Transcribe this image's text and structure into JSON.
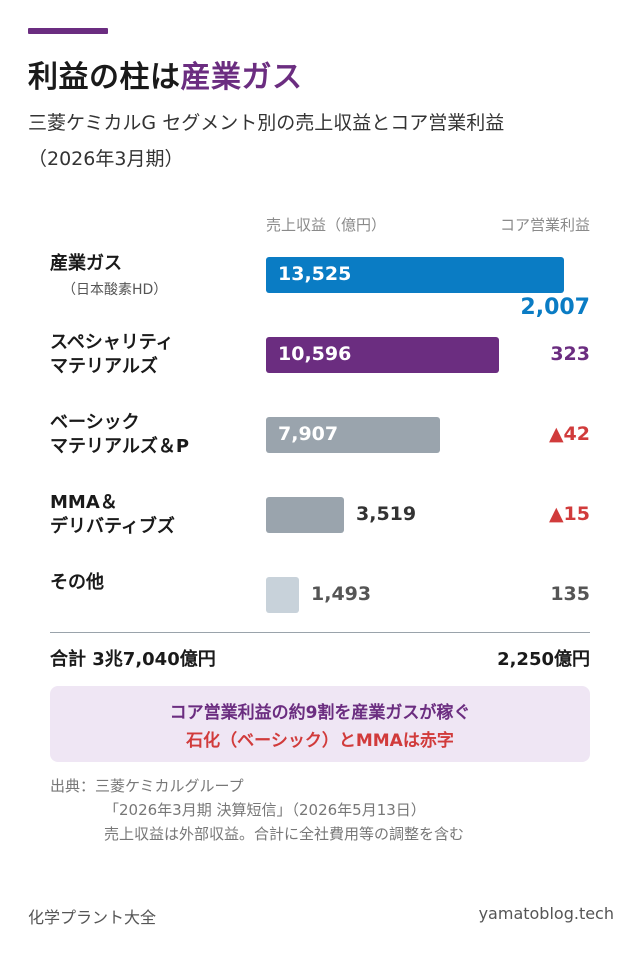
{
  "header": {
    "title_prefix": "利益の柱は",
    "title_highlight": "産業ガス",
    "subtitle_line1": "三菱ケミカルG セグメント別の売上収益とコア営業利益",
    "subtitle_line2": "（2026年3月期）"
  },
  "columns": {
    "revenue": "売上収益（億円）",
    "profit": "コア営業利益"
  },
  "colors": {
    "accent": "#6b2d80",
    "industrial_gas": "#0a7cc4",
    "specialty": "#6b2d80",
    "basic": "#9aa4ad",
    "mma": "#9aa4ad",
    "other": "#c8d2da",
    "loss": "#d13b3b"
  },
  "chart_data": {
    "type": "bar",
    "categories": [
      "産業ガス",
      "スペシャリティ マテリアルズ",
      "ベーシック マテリアルズ＆P",
      "MMA＆ デリバティブズ",
      "その他"
    ],
    "series": [
      {
        "name": "売上収益（億円）",
        "values": [
          13525,
          10596,
          7907,
          3519,
          1493
        ]
      },
      {
        "name": "コア営業利益",
        "values": [
          2007,
          323,
          -42,
          -15,
          135
        ]
      }
    ],
    "xlim": [
      0,
      13525
    ]
  },
  "rows": [
    {
      "label1": "産業ガス",
      "label2": "",
      "sub": "（日本酸素HD）",
      "revenue": "13,525",
      "profit": "2,007"
    },
    {
      "label1": "スペシャリティ",
      "label2": "マテリアルズ",
      "sub": "",
      "revenue": "10,596",
      "profit": "323"
    },
    {
      "label1": "ベーシック",
      "label2": "マテリアルズ＆P",
      "sub": "",
      "revenue": "7,907",
      "profit": "▲42"
    },
    {
      "label1": "MMA＆",
      "label2": "デリバティブズ",
      "sub": "",
      "revenue": "3,519",
      "profit": "▲15"
    },
    {
      "label1": "その他",
      "label2": "",
      "sub": "",
      "revenue": "1,493",
      "profit": "135"
    }
  ],
  "totals": {
    "left": "合計 3兆7,040億円",
    "right": "2,250億円"
  },
  "callout": {
    "line1": "コア営業利益の約9割を産業ガスが稼ぐ",
    "line2": "石化（ベーシック）とMMAは赤字"
  },
  "source": {
    "line1": "出典：三菱ケミカルグループ",
    "line2": "「2026年3月期 決算短信」（2026年5月13日）",
    "line3": "売上収益は外部収益。合計に全社費用等の調整を含む"
  },
  "footer": {
    "left": "化学プラント大全",
    "right": "yamatoblog.tech"
  }
}
